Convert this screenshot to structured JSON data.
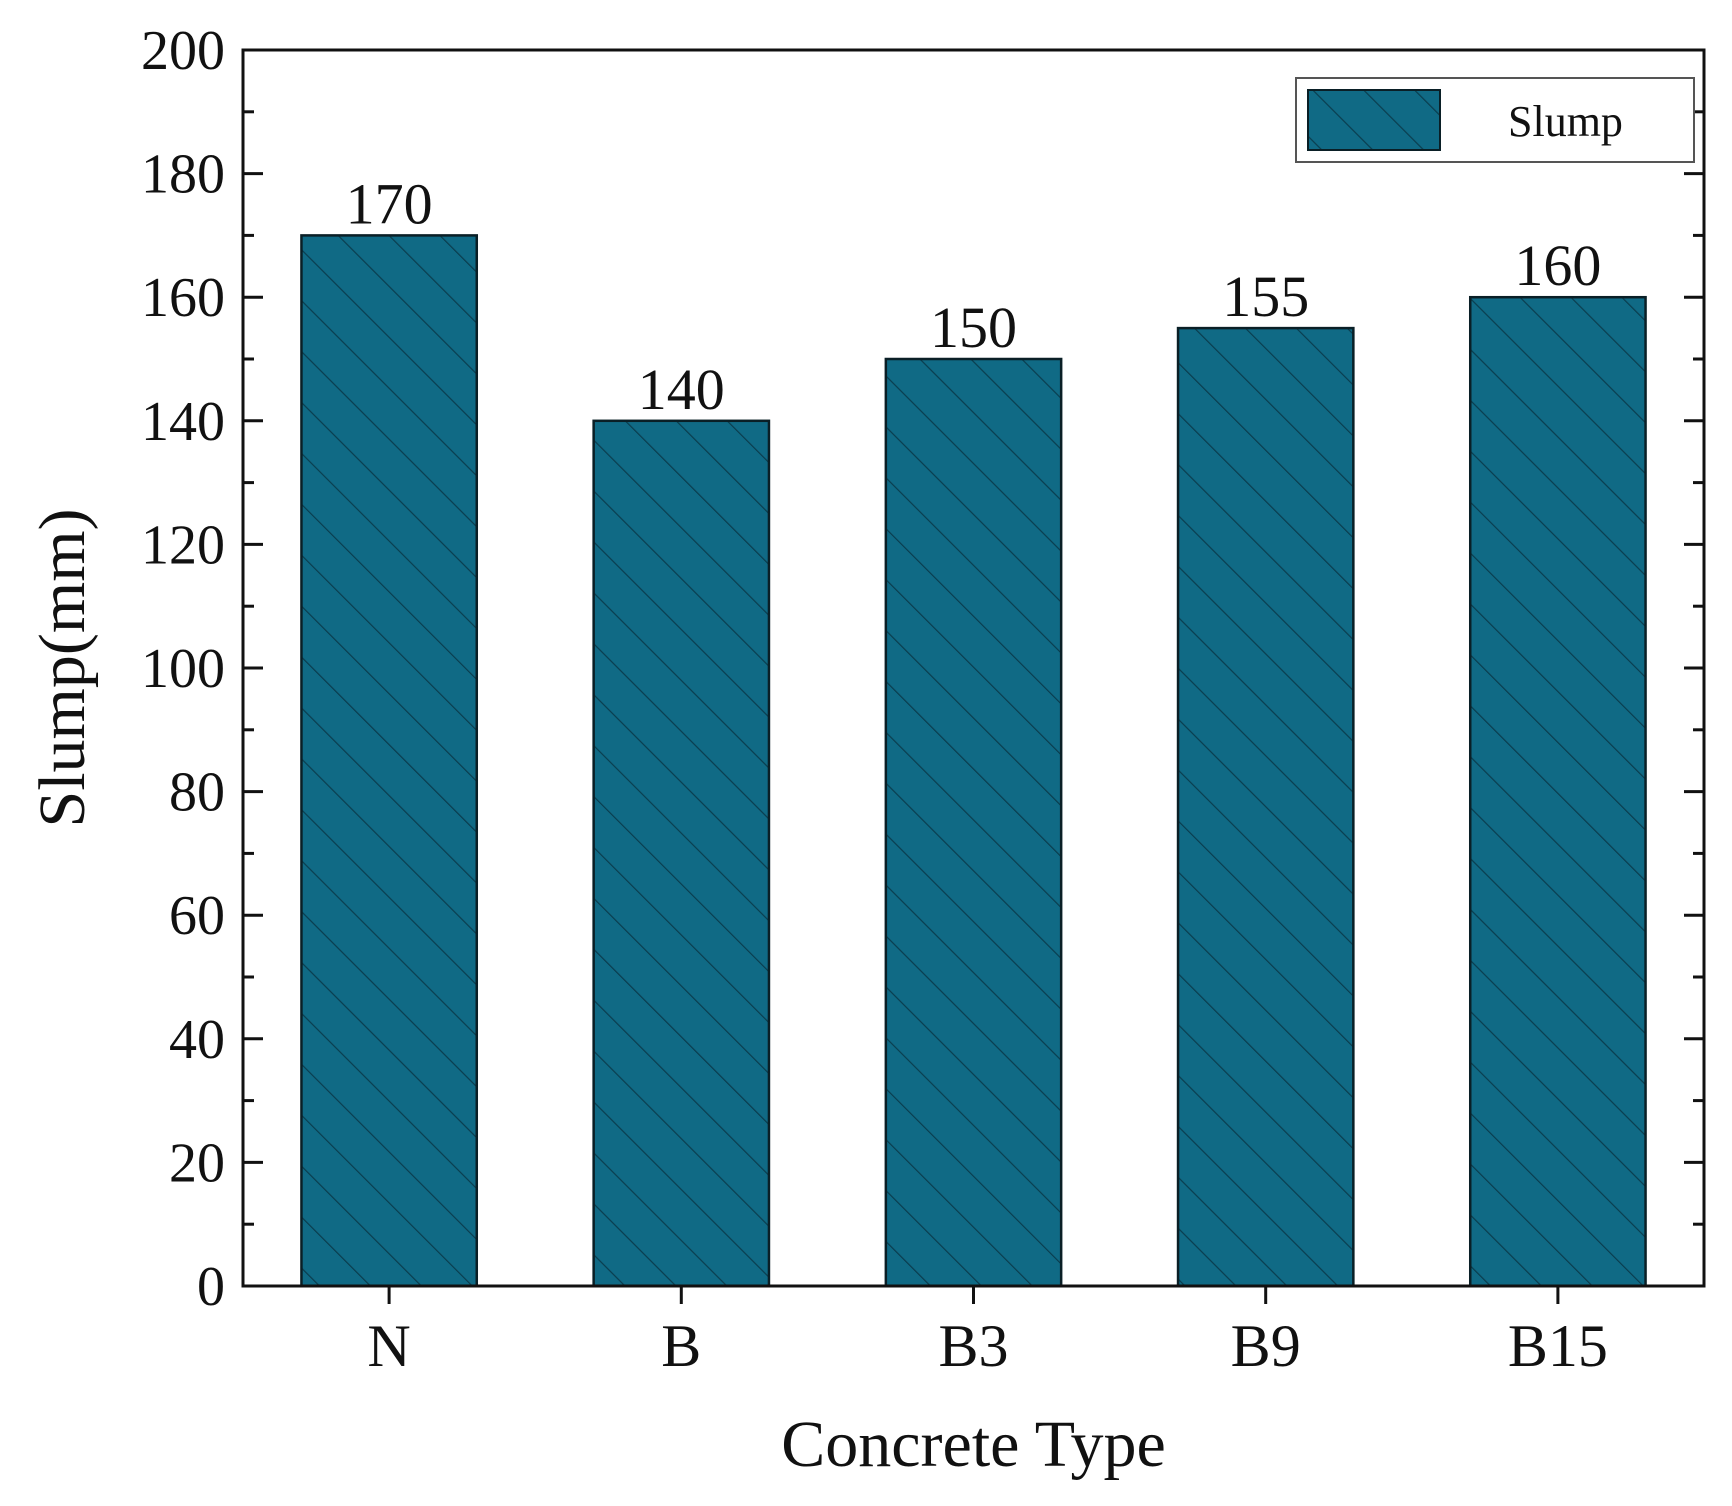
{
  "chart_data": {
    "type": "bar",
    "categories": [
      "N",
      "B",
      "B3",
      "B9",
      "B15"
    ],
    "values": [
      170,
      140,
      150,
      155,
      160
    ],
    "value_labels": [
      "170",
      "140",
      "150",
      "155",
      "160"
    ],
    "series": [
      {
        "name": "Slump",
        "values": [
          170,
          140,
          150,
          155,
          160
        ]
      }
    ],
    "title": "",
    "xlabel": "Concrete Type",
    "ylabel": "Slump(mm)",
    "ylim": [
      0,
      200
    ],
    "yticks": [
      0,
      20,
      40,
      60,
      80,
      100,
      120,
      140,
      160,
      180,
      200
    ],
    "ytick_labels": [
      "0",
      "20",
      "40",
      "60",
      "80",
      "100",
      "120",
      "140",
      "160",
      "180",
      "200"
    ],
    "grid": false,
    "legend": {
      "position": "top-right",
      "entries": [
        "Slump"
      ]
    },
    "bar_pattern": "diagonal-hatch",
    "colors": {
      "bar_fill": "#106a85",
      "hatch": "#0a3d4e",
      "axis": "#111111"
    }
  }
}
